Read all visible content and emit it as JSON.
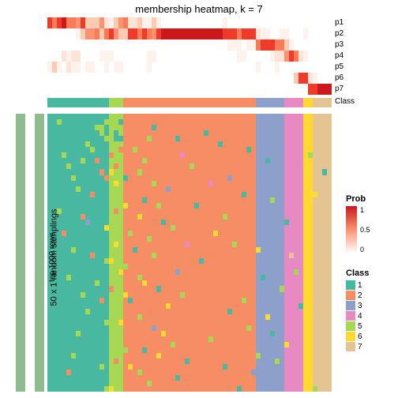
{
  "title": "membership heatmap, k = 7",
  "ylabel_outer": "50 x 1 random samplings",
  "ylabel_inner": "top 1000 rows",
  "prob_labels": [
    "p1",
    "p2",
    "p3",
    "p4",
    "p5",
    "p6",
    "p7"
  ],
  "class_bar_label": "Class",
  "prob_colors": {
    "0": "#ffffff",
    "0.1": "#fff2ec",
    "0.2": "#fee3d6",
    "0.3": "#fdcab2",
    "0.5": "#fc9272",
    "0.6": "#fb7b56",
    "0.8": "#ef3b2c",
    "1": "#cb181d"
  },
  "class_colors": {
    "1": "#48b8a0",
    "2": "#f68d64",
    "3": "#8da0cb",
    "4": "#e78ac3",
    "5": "#a6d854",
    "6": "#ffd92f",
    "7": "#e5c494"
  },
  "prob_heatmap": {
    "cols": 60,
    "rows": [
      [
        0.8,
        0.6,
        0.8,
        1,
        0.6,
        0.6,
        0.5,
        0.8,
        0.3,
        0.3,
        0.3,
        0.5,
        0.2,
        0.1,
        0.3,
        0.5,
        0.6,
        0.2,
        0.2,
        0.3,
        0.1,
        0.1,
        0.3,
        0.1,
        0,
        0,
        0,
        0,
        0,
        0,
        0,
        0,
        0,
        0,
        0,
        0,
        0,
        0.1,
        0,
        0,
        0,
        0,
        0,
        0,
        0,
        0,
        0,
        0,
        0,
        0,
        0,
        0,
        0,
        0,
        0,
        0,
        0,
        0,
        0,
        0
      ],
      [
        0,
        0,
        0,
        0,
        0,
        0,
        0.1,
        0.3,
        0.5,
        0.5,
        0.6,
        0.3,
        0.6,
        0.8,
        0.5,
        0.3,
        0.3,
        0.8,
        0.8,
        0.6,
        0.8,
        0.6,
        0.5,
        0.8,
        1,
        1,
        1,
        1,
        1,
        1,
        1,
        1,
        1,
        1,
        1,
        1,
        1,
        0.8,
        0.8,
        0.8,
        0.6,
        0.8,
        0.8,
        0.8,
        0.2,
        0.1,
        0.1,
        0,
        0,
        0.1,
        0.1,
        0,
        0,
        0,
        0.1,
        0,
        0,
        0,
        0,
        0
      ],
      [
        0,
        0,
        0,
        0,
        0,
        0,
        0,
        0,
        0,
        0,
        0,
        0,
        0,
        0,
        0,
        0,
        0,
        0,
        0,
        0,
        0,
        0,
        0,
        0,
        0,
        0,
        0,
        0,
        0,
        0,
        0,
        0,
        0,
        0,
        0,
        0,
        0,
        0,
        0.1,
        0.1,
        0.1,
        0,
        0.1,
        0.1,
        0.6,
        0.8,
        0.8,
        0.8,
        0.6,
        0.6,
        0.3,
        0.1,
        0,
        0,
        0,
        0,
        0,
        0,
        0,
        0
      ],
      [
        0,
        0,
        0,
        0.2,
        0.1,
        0.2,
        0.2,
        0,
        0,
        0,
        0,
        0.1,
        0.1,
        0.1,
        0,
        0,
        0,
        0,
        0,
        0,
        0,
        0.1,
        0.1,
        0,
        0,
        0,
        0,
        0,
        0,
        0,
        0,
        0,
        0,
        0,
        0,
        0,
        0,
        0,
        0,
        0,
        0.1,
        0.1,
        0,
        0,
        0,
        0,
        0,
        0.1,
        0.2,
        0.2,
        0.5,
        0.8,
        0.6,
        0.2,
        0.1,
        0,
        0,
        0,
        0,
        0
      ],
      [
        0.1,
        0.3,
        0.1,
        0,
        0.2,
        0.1,
        0.1,
        0,
        0.1,
        0.1,
        0,
        0,
        0.1,
        0,
        0.1,
        0.1,
        0,
        0,
        0,
        0,
        0,
        0.1,
        0,
        0,
        0,
        0,
        0,
        0,
        0,
        0,
        0,
        0,
        0,
        0,
        0,
        0,
        0,
        0,
        0,
        0,
        0,
        0,
        0,
        0,
        0.1,
        0,
        0,
        0,
        0.1,
        0,
        0,
        0,
        0,
        0,
        0,
        0,
        0,
        0,
        0,
        0
      ],
      [
        0,
        0,
        0,
        0,
        0,
        0,
        0,
        0,
        0,
        0,
        0,
        0,
        0,
        0,
        0,
        0,
        0,
        0,
        0,
        0,
        0,
        0,
        0,
        0,
        0,
        0,
        0,
        0,
        0,
        0,
        0,
        0,
        0,
        0,
        0,
        0,
        0,
        0,
        0,
        0,
        0,
        0,
        0,
        0,
        0,
        0,
        0,
        0,
        0,
        0,
        0,
        0,
        0.3,
        0.8,
        0.8,
        0.2,
        0.1,
        0,
        0,
        0
      ],
      [
        0,
        0,
        0,
        0,
        0,
        0,
        0,
        0,
        0,
        0,
        0,
        0,
        0,
        0,
        0,
        0,
        0,
        0,
        0,
        0,
        0,
        0,
        0,
        0,
        0,
        0,
        0,
        0,
        0,
        0,
        0,
        0,
        0,
        0,
        0,
        0,
        0,
        0,
        0,
        0,
        0,
        0,
        0,
        0,
        0,
        0,
        0,
        0,
        0,
        0,
        0,
        0,
        0,
        0,
        0,
        0.8,
        0.8,
        1,
        1,
        1
      ]
    ]
  },
  "class_bar_segments": [
    {
      "cls": 1,
      "w": 13
    },
    {
      "cls": 5,
      "w": 3
    },
    {
      "cls": 2,
      "w": 28
    },
    {
      "cls": 3,
      "w": 6
    },
    {
      "cls": 4,
      "w": 4
    },
    {
      "cls": 6,
      "w": 2
    },
    {
      "cls": 7,
      "w": 4
    }
  ],
  "main_heatmap": {
    "rows": 50,
    "cols": 60,
    "base_pattern": [
      1,
      1,
      1,
      1,
      1,
      1,
      1,
      1,
      1,
      1,
      1,
      1,
      1,
      5,
      5,
      5,
      2,
      2,
      2,
      2,
      2,
      2,
      2,
      2,
      2,
      2,
      2,
      2,
      2,
      2,
      2,
      2,
      2,
      2,
      2,
      2,
      2,
      2,
      2,
      2,
      2,
      2,
      2,
      2,
      3,
      3,
      3,
      3,
      3,
      3,
      4,
      4,
      4,
      4,
      6,
      6,
      7,
      7,
      7,
      7
    ],
    "overrides": {
      "1": {
        "2": 5,
        "12": 5,
        "15": 1
      },
      "2": {
        "10": 5,
        "11": 5,
        "22": 1
      },
      "3": {
        "11": 5,
        "14": 1,
        "33": 1
      },
      "4": {
        "12": 5,
        "14": 1,
        "15": 1,
        "21": 5,
        "27": 1
      },
      "5": {
        "8": 5,
        "17": 2,
        "36": 1
      },
      "6": {
        "9": 5,
        "15": 2,
        "18": 5,
        "42": 1
      },
      "7": {
        "3": 5,
        "12": 1,
        "13": 2,
        "28": 4,
        "55": 5
      },
      "8": {
        "7": 5,
        "10": 2,
        "20": 5,
        "46": 1
      },
      "9": {
        "4": 5,
        "14": 2,
        "30": 5
      },
      "10": {
        "11": 2,
        "13": 6,
        "19": 5,
        "58": 1
      },
      "11": {
        "5": 5,
        "12": 2,
        "16": 1,
        "38": 3
      },
      "12": {
        "14": 6,
        "22": 5,
        "34": 4
      },
      "13": {
        "6": 5,
        "18": 2,
        "25": 3
      },
      "14": {
        "9": 2,
        "14": 5,
        "41": 1,
        "56": 6
      },
      "15": {
        "13": 5,
        "20": 1,
        "47": 5
      },
      "16": {
        "16": 6,
        "23": 5,
        "31": 1
      },
      "17": {
        "2": 5,
        "10": 1,
        "14": 2
      },
      "18": {
        "7": 2,
        "19": 6,
        "37": 5
      },
      "19": {
        "8": 3,
        "15": 5,
        "24": 1,
        "50": 1
      },
      "20": {
        "12": 6,
        "26": 5,
        "43": 2
      },
      "21": {
        "3": 2,
        "17": 5,
        "35": 6
      },
      "22": {
        "11": 1,
        "21": 5,
        "48": 3
      },
      "23": {
        "14": 6,
        "29": 4,
        "39": 5
      },
      "24": {
        "5": 5,
        "18": 1,
        "44": 6
      },
      "25": {
        "9": 2,
        "22": 5,
        "51": 7
      },
      "26": {
        "12": 5,
        "13": 6,
        "32": 1
      },
      "27": {
        "6": 1,
        "16": 5,
        "40": 2
      },
      "28": {
        "15": 6,
        "27": 3,
        "52": 5
      },
      "29": {
        "4": 5,
        "19": 5,
        "45": 1
      },
      "30": {
        "10": 5,
        "20": 6,
        "36": 2
      },
      "31": {
        "13": 2,
        "23": 1,
        "49": 5
      },
      "32": {
        "7": 5,
        "16": 6,
        "28": 5
      },
      "33": {
        "11": 2,
        "17": 1,
        "41": 5
      },
      "34": {
        "14": 5,
        "25": 6,
        "53": 1
      },
      "35": {
        "8": 5,
        "21": 2,
        "38": 1
      },
      "36": {
        "3": 1,
        "19": 5,
        "46": 6
      },
      "37": {
        "12": 5,
        "15": 6,
        "30": 2
      },
      "38": {
        "9": 1,
        "22": 3,
        "42": 5
      },
      "39": {
        "6": 5,
        "24": 6,
        "47": 1
      },
      "40": {
        "13": 5,
        "18": 2,
        "34": 5
      },
      "41": {
        "10": 1,
        "26": 5,
        "50": 6
      },
      "42": {
        "16": 5,
        "20": 1,
        "39": 2
      },
      "43": {
        "5": 5,
        "23": 6,
        "44": 5
      },
      "44": {
        "14": 2,
        "29": 1,
        "48": 5
      },
      "45": {
        "11": 5,
        "17": 6,
        "37": 1
      },
      "46": {
        "4": 2,
        "19": 5,
        "43": 3
      },
      "47": {
        "15": 5,
        "27": 1,
        "54": 6
      },
      "48": {
        "8": 1,
        "21": 5,
        "35": 2
      },
      "49": {
        "12": 5,
        "13": 6,
        "40": 1,
        "56": 5
      }
    }
  },
  "legend_prob": {
    "title": "Prob",
    "stops": [
      "#cb181d",
      "#fc9272",
      "#ffffff"
    ],
    "labels": [
      "1",
      "0.5",
      "0"
    ]
  },
  "legend_class": {
    "title": "Class",
    "items": [
      {
        "cls": 1,
        "label": "1"
      },
      {
        "cls": 2,
        "label": "2"
      },
      {
        "cls": 3,
        "label": "3"
      },
      {
        "cls": 4,
        "label": "4"
      },
      {
        "cls": 5,
        "label": "5"
      },
      {
        "cls": 6,
        "label": "6"
      },
      {
        "cls": 7,
        "label": "7"
      }
    ]
  }
}
